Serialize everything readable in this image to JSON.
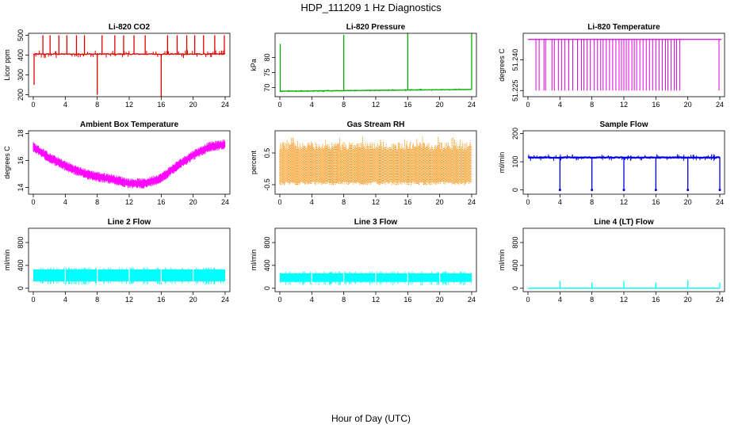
{
  "figure": {
    "title": "HDP_111209  1 Hz Diagnostics",
    "xlabel": "Hour of Day (UTC)"
  },
  "chart_data": [
    {
      "id": "co2",
      "type": "line",
      "title": "Li-820 CO2",
      "ylabel": "Licor ppm",
      "color": "#e00000",
      "xlim": [
        0,
        24
      ],
      "ylim": [
        190,
        510
      ],
      "xticks": [
        0,
        4,
        8,
        12,
        16,
        20,
        24
      ],
      "yticks": [
        200,
        300,
        400,
        500
      ],
      "yticklabels": [
        "200",
        "300",
        "400",
        "500"
      ],
      "baseline": 405,
      "noise": 10,
      "spikes": [
        {
          "x": 0.1,
          "y": 250
        },
        {
          "x": 1.2,
          "y": 500
        },
        {
          "x": 2.1,
          "y": 500
        },
        {
          "x": 3.2,
          "y": 500
        },
        {
          "x": 4.2,
          "y": 500
        },
        {
          "x": 5.4,
          "y": 500
        },
        {
          "x": 6.4,
          "y": 500
        },
        {
          "x": 8.0,
          "y": 200
        },
        {
          "x": 8.6,
          "y": 500
        },
        {
          "x": 10.2,
          "y": 500
        },
        {
          "x": 11.3,
          "y": 500
        },
        {
          "x": 12.6,
          "y": 500
        },
        {
          "x": 14.0,
          "y": 500
        },
        {
          "x": 16.0,
          "y": 190
        },
        {
          "x": 16.8,
          "y": 500
        },
        {
          "x": 18.0,
          "y": 500
        },
        {
          "x": 19.2,
          "y": 500
        },
        {
          "x": 20.2,
          "y": 500
        },
        {
          "x": 21.3,
          "y": 500
        },
        {
          "x": 22.7,
          "y": 500
        },
        {
          "x": 23.9,
          "y": 500
        }
      ]
    },
    {
      "id": "pressure",
      "type": "line",
      "title": "Li-820 Pressure",
      "ylabel": "kPa",
      "color": "#00b000",
      "xlim": [
        0,
        24
      ],
      "ylim": [
        67,
        88
      ],
      "xticks": [
        0,
        4,
        8,
        12,
        16,
        20,
        24
      ],
      "yticks": [
        70,
        75,
        80
      ],
      "yticklabels": [
        "70",
        "75",
        "80"
      ],
      "baseline": 68.8,
      "drift": 0.6,
      "noise": 0.2,
      "spikes": [
        {
          "x": 0.05,
          "y": 84.5
        },
        {
          "x": 8.0,
          "y": 87.5
        },
        {
          "x": 16.0,
          "y": 88
        },
        {
          "x": 24.0,
          "y": 88
        }
      ]
    },
    {
      "id": "licor_temp",
      "type": "step",
      "title": "Li-820 Temperature",
      "ylabel": "degrees C",
      "color": "#e000e0",
      "xlim": [
        0,
        24
      ],
      "ylim": [
        51.222,
        51.253
      ],
      "xticks": [
        0,
        4,
        8,
        12,
        16,
        20,
        24
      ],
      "yticks": [
        51.225,
        51.24
      ],
      "yticklabels": [
        "51.225",
        "51.240"
      ],
      "high": 51.25,
      "low": 51.225,
      "drops": [
        1.0,
        1.4,
        2.0,
        2.2,
        3.0,
        3.3,
        3.8,
        4.2,
        4.6,
        5.1,
        5.6,
        6.2,
        6.7,
        7.0,
        7.4,
        7.8,
        8.3,
        8.7,
        9.1,
        9.4,
        9.8,
        10.2,
        10.6,
        11.0,
        11.4,
        11.7,
        12.0,
        12.3,
        12.6,
        13.0,
        13.3,
        13.6,
        14.0,
        14.4,
        14.8,
        15.2,
        15.6,
        16.0,
        16.4,
        16.8,
        17.2,
        17.5,
        17.9,
        18.3,
        18.6,
        19.0,
        23.9
      ]
    },
    {
      "id": "ambient",
      "type": "line",
      "title": "Ambient Box Temperature",
      "ylabel": "degrees C",
      "color": "#ff00ff",
      "xlim": [
        0,
        24
      ],
      "ylim": [
        13.5,
        18.2
      ],
      "xticks": [
        0,
        4,
        8,
        12,
        16,
        20,
        24
      ],
      "yticks": [
        14,
        16,
        18
      ],
      "yticklabels": [
        "14",
        "16",
        "18"
      ],
      "curve_x": [
        0,
        2,
        4,
        6,
        8,
        10,
        12,
        14,
        16,
        18,
        20,
        22,
        24
      ],
      "curve_y": [
        17.0,
        16.2,
        15.6,
        15.1,
        14.8,
        14.6,
        14.3,
        14.3,
        14.7,
        15.6,
        16.4,
        17.0,
        17.2
      ],
      "band": 0.7
    },
    {
      "id": "rh",
      "type": "band",
      "title": "Gas Stream RH",
      "ylabel": "percent",
      "color": "#ff8c00",
      "xlim": [
        0,
        24
      ],
      "ylim": [
        -0.8,
        1.2
      ],
      "xticks": [
        0,
        4,
        8,
        12,
        16,
        20,
        24
      ],
      "yticks": [
        -0.5,
        0.5
      ],
      "yticklabels": [
        "-0.5",
        "0.5"
      ],
      "low": -0.45,
      "high": 0.85
    },
    {
      "id": "sample_flow",
      "type": "line",
      "title": "Sample Flow",
      "ylabel": "ml/min",
      "color": "#0000e0",
      "xlim": [
        0,
        24
      ],
      "ylim": [
        -15,
        210
      ],
      "xticks": [
        0,
        4,
        8,
        12,
        16,
        20,
        24
      ],
      "yticks": [
        0,
        100,
        200
      ],
      "yticklabels": [
        "0",
        "100",
        "200"
      ],
      "baseline": 115,
      "noise": 6,
      "spikes": [
        {
          "x": 4.0,
          "y": 0
        },
        {
          "x": 8.0,
          "y": 0
        },
        {
          "x": 12.0,
          "y": 0
        },
        {
          "x": 16.0,
          "y": 0
        },
        {
          "x": 20.0,
          "y": 0
        },
        {
          "x": 24.0,
          "y": 0
        }
      ]
    },
    {
      "id": "line2",
      "type": "band",
      "title": "Line 2 Flow",
      "ylabel": "ml/min",
      "color": "#00ffff",
      "xlim": [
        0,
        24
      ],
      "ylim": [
        -60,
        1050
      ],
      "xticks": [
        0,
        4,
        8,
        12,
        16,
        20,
        24
      ],
      "yticks": [
        0,
        400,
        800
      ],
      "yticklabels": [
        "0",
        "400",
        "800"
      ],
      "low": 120,
      "high": 330,
      "gaps": [
        4.0,
        8.0,
        12.0,
        16.0,
        20.0
      ]
    },
    {
      "id": "line3",
      "type": "band",
      "title": "Line 3 Flow",
      "ylabel": "ml/min",
      "color": "#00ffff",
      "xlim": [
        0,
        24
      ],
      "ylim": [
        -60,
        1050
      ],
      "xticks": [
        0,
        4,
        8,
        12,
        16,
        20,
        24
      ],
      "yticks": [
        0,
        400,
        800
      ],
      "yticklabels": [
        "0",
        "400",
        "800"
      ],
      "low": 110,
      "high": 260,
      "gaps": [
        4.0,
        8.0,
        12.0,
        16.0,
        20.0
      ]
    },
    {
      "id": "line4",
      "type": "line",
      "title": "Line 4 (LT) Flow",
      "ylabel": "ml/min",
      "color": "#00ffff",
      "xlim": [
        0,
        24
      ],
      "ylim": [
        -60,
        1050
      ],
      "xticks": [
        0,
        4,
        8,
        12,
        16,
        20,
        24
      ],
      "yticks": [
        0,
        400,
        800
      ],
      "yticklabels": [
        "0",
        "400",
        "800"
      ],
      "baseline": 0,
      "noise": 0,
      "spikes": [
        {
          "x": 4.0,
          "y": 130
        },
        {
          "x": 8.0,
          "y": 100
        },
        {
          "x": 12.0,
          "y": 130
        },
        {
          "x": 16.0,
          "y": 100
        },
        {
          "x": 20.0,
          "y": 140
        },
        {
          "x": 24.0,
          "y": 100
        }
      ]
    }
  ]
}
